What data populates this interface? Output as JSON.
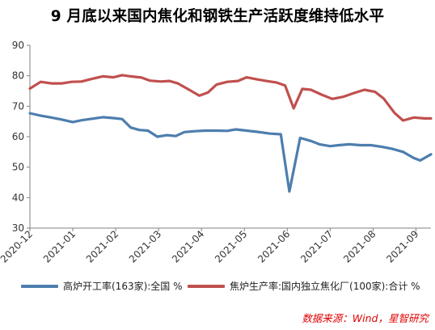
{
  "title": "9 月底以来国内焦化和钢铁生产活跃度维持低水平",
  "source": "数据来源：Wind，星智研究",
  "colors": {
    "series1": "#4d7eae",
    "series2": "#c0504d",
    "axis": "#808080",
    "text": "#333333"
  },
  "chart_data": {
    "type": "line",
    "x_ticks": [
      "2020-12",
      "2021-01",
      "2021-02",
      "2021-03",
      "2021-04",
      "2021-05",
      "2021-06",
      "2021-07",
      "2021-08",
      "2021-09"
    ],
    "x_range": [
      0,
      9.35
    ],
    "ylim": [
      30,
      90
    ],
    "yticks": [
      30,
      40,
      50,
      60,
      70,
      80,
      90
    ],
    "grid": false,
    "legend_position": "bottom",
    "series": [
      {
        "name": "高炉开工率(163家):全国 %",
        "color": "#4d7eae",
        "points": [
          [
            0.0,
            67.7
          ],
          [
            0.25,
            66.9
          ],
          [
            0.5,
            66.3
          ],
          [
            0.75,
            65.6
          ],
          [
            1.0,
            64.8
          ],
          [
            1.2,
            65.4
          ],
          [
            1.45,
            65.9
          ],
          [
            1.7,
            66.4
          ],
          [
            1.95,
            66.1
          ],
          [
            2.15,
            65.8
          ],
          [
            2.35,
            63.0
          ],
          [
            2.55,
            62.2
          ],
          [
            2.75,
            62.0
          ],
          [
            2.97,
            60.0
          ],
          [
            3.2,
            60.5
          ],
          [
            3.4,
            60.2
          ],
          [
            3.6,
            61.5
          ],
          [
            3.85,
            61.8
          ],
          [
            4.1,
            62.0
          ],
          [
            4.35,
            62.0
          ],
          [
            4.6,
            61.9
          ],
          [
            4.8,
            62.4
          ],
          [
            5.05,
            62.0
          ],
          [
            5.3,
            61.6
          ],
          [
            5.6,
            61.0
          ],
          [
            5.85,
            60.8
          ],
          [
            6.05,
            42.0
          ],
          [
            6.3,
            59.6
          ],
          [
            6.55,
            58.6
          ],
          [
            6.75,
            57.5
          ],
          [
            7.0,
            56.9
          ],
          [
            7.2,
            57.2
          ],
          [
            7.45,
            57.5
          ],
          [
            7.7,
            57.2
          ],
          [
            7.95,
            57.2
          ],
          [
            8.2,
            56.7
          ],
          [
            8.45,
            56.0
          ],
          [
            8.7,
            55.0
          ],
          [
            8.95,
            53.0
          ],
          [
            9.1,
            52.2
          ],
          [
            9.35,
            54.2
          ]
        ]
      },
      {
        "name": "焦炉生产率:国内独立焦化厂(100家):合计 %",
        "color": "#c0504d",
        "points": [
          [
            0.0,
            75.8
          ],
          [
            0.25,
            78.0
          ],
          [
            0.5,
            77.5
          ],
          [
            0.75,
            77.5
          ],
          [
            0.97,
            78.0
          ],
          [
            1.2,
            78.1
          ],
          [
            1.45,
            79.0
          ],
          [
            1.7,
            79.8
          ],
          [
            1.95,
            79.5
          ],
          [
            2.15,
            80.2
          ],
          [
            2.35,
            79.8
          ],
          [
            2.6,
            79.4
          ],
          [
            2.8,
            78.4
          ],
          [
            3.05,
            78.1
          ],
          [
            3.25,
            78.3
          ],
          [
            3.45,
            77.5
          ],
          [
            3.7,
            75.5
          ],
          [
            3.95,
            73.5
          ],
          [
            4.15,
            74.5
          ],
          [
            4.35,
            77.1
          ],
          [
            4.6,
            78.0
          ],
          [
            4.85,
            78.3
          ],
          [
            5.05,
            79.5
          ],
          [
            5.3,
            78.8
          ],
          [
            5.55,
            78.2
          ],
          [
            5.75,
            77.8
          ],
          [
            5.95,
            76.8
          ],
          [
            6.15,
            69.3
          ],
          [
            6.35,
            75.7
          ],
          [
            6.55,
            75.4
          ],
          [
            6.8,
            73.8
          ],
          [
            7.05,
            72.4
          ],
          [
            7.3,
            73.1
          ],
          [
            7.55,
            74.3
          ],
          [
            7.8,
            75.4
          ],
          [
            8.05,
            74.7
          ],
          [
            8.25,
            72.5
          ],
          [
            8.5,
            67.8
          ],
          [
            8.7,
            65.3
          ],
          [
            8.95,
            66.3
          ],
          [
            9.2,
            66.0
          ],
          [
            9.35,
            66.0
          ]
        ]
      }
    ]
  }
}
